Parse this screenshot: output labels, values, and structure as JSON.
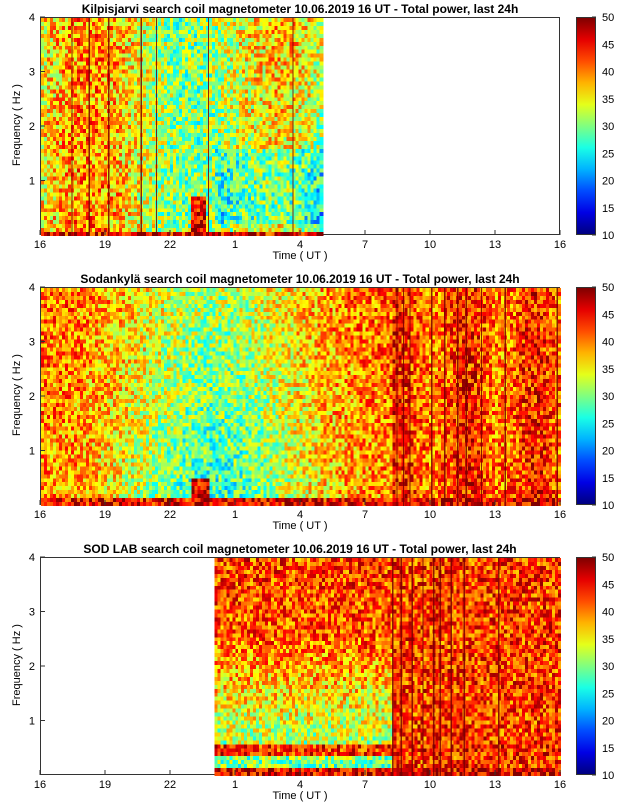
{
  "chart_data": [
    {
      "type": "heatmap",
      "title": "Kilpisjarvi search coil magnetometer 10.06.2019 16 UT - Total power, last 24h",
      "xlabel": "Time ( UT )",
      "ylabel": "Frequency ( Hz )",
      "x_ticks": [
        "16",
        "19",
        "22",
        "1",
        "4",
        "7",
        "10",
        "13",
        "16"
      ],
      "y_ticks": [
        "1",
        "2",
        "3",
        "4"
      ],
      "ylim": [
        0,
        4
      ],
      "data_start_hours": 0,
      "data_end_hours": 13,
      "colorbar": {
        "min": 10,
        "max": 50,
        "ticks": [
          "10",
          "15",
          "20",
          "25",
          "30",
          "35",
          "40",
          "45",
          "50"
        ]
      }
    },
    {
      "type": "heatmap",
      "title": "Sodankylä search coil magnetometer 10.06.2019 16 UT - Total power, last 24h",
      "xlabel": "Time ( UT )",
      "ylabel": "Frequency ( Hz )",
      "x_ticks": [
        "16",
        "19",
        "22",
        "1",
        "4",
        "7",
        "10",
        "13",
        "16"
      ],
      "y_ticks": [
        "1",
        "2",
        "3",
        "4"
      ],
      "ylim": [
        0,
        4
      ],
      "data_start_hours": 0,
      "data_end_hours": 24,
      "colorbar": {
        "min": 10,
        "max": 50,
        "ticks": [
          "10",
          "15",
          "20",
          "25",
          "30",
          "35",
          "40",
          "45",
          "50"
        ]
      }
    },
    {
      "type": "heatmap",
      "title": "SOD LAB search coil magnetometer 10.06.2019 16 UT - Total power, last 24h",
      "xlabel": "Time ( UT )",
      "ylabel": "Frequency ( Hz )",
      "x_ticks": [
        "16",
        "19",
        "22",
        "1",
        "4",
        "7",
        "10",
        "13",
        "16"
      ],
      "y_ticks": [
        "1",
        "2",
        "3",
        "4"
      ],
      "ylim": [
        0,
        4
      ],
      "data_start_hours": 8,
      "data_end_hours": 24,
      "colorbar": {
        "min": 10,
        "max": 50,
        "ticks": [
          "10",
          "15",
          "20",
          "25",
          "30",
          "35",
          "40",
          "45",
          "50"
        ]
      }
    }
  ]
}
